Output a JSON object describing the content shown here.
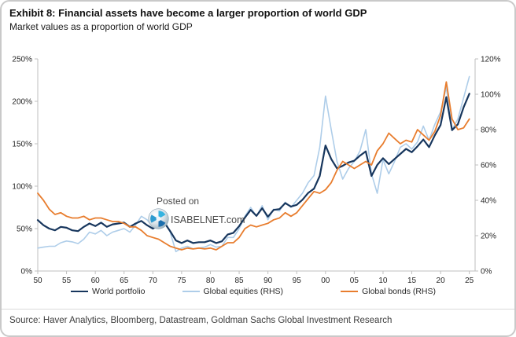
{
  "header": {
    "title": "Exhibit 8: Financial assets have become a larger proportion of world GDP",
    "subtitle": "Market values as a proportion of world GDP"
  },
  "watermark": {
    "line1": "Posted on",
    "line2": "ISABELNET.com"
  },
  "legend": [
    {
      "label": "World portfolio"
    },
    {
      "label": "Global equities (RHS)"
    },
    {
      "label": "Global bonds (RHS)"
    }
  ],
  "footer": {
    "source": "Source: Haver Analytics, Bloomberg, Datastream, Goldman Sachs Global Investment Research"
  },
  "colors": {
    "world_portfolio": "#17365d",
    "global_equities": "#aecde9",
    "global_bonds": "#e87d2e",
    "axis_line": "#bfbfbf",
    "tick_label": "#262626",
    "logo_blue": "#2e9bd0"
  },
  "chart_data": {
    "type": "line",
    "title": "Exhibit 8: Financial assets have become a larger proportion of world GDP",
    "subtitle": "Market values as a proportion of world GDP",
    "grid": false,
    "legend_position": "bottom",
    "x_domain": [
      1950,
      2026
    ],
    "x": [
      1950,
      1951,
      1952,
      1953,
      1954,
      1955,
      1956,
      1957,
      1958,
      1959,
      1960,
      1961,
      1962,
      1963,
      1964,
      1965,
      1966,
      1967,
      1968,
      1969,
      1970,
      1971,
      1972,
      1973,
      1974,
      1975,
      1976,
      1977,
      1978,
      1979,
      1980,
      1981,
      1982,
      1983,
      1984,
      1985,
      1986,
      1987,
      1988,
      1989,
      1990,
      1991,
      1992,
      1993,
      1994,
      1995,
      1996,
      1997,
      1998,
      1999,
      2000,
      2001,
      2002,
      2003,
      2004,
      2005,
      2006,
      2007,
      2008,
      2009,
      2010,
      2011,
      2012,
      2013,
      2014,
      2015,
      2016,
      2017,
      2018,
      2019,
      2020,
      2021,
      2022,
      2023,
      2024,
      2025
    ],
    "x_ticks": {
      "values": [
        1950,
        1955,
        1960,
        1965,
        1970,
        1975,
        1980,
        1985,
        1990,
        1995,
        2000,
        2005,
        2010,
        2015,
        2020,
        2025
      ],
      "labels": [
        "50",
        "55",
        "60",
        "65",
        "70",
        "75",
        "80",
        "85",
        "90",
        "95",
        "00",
        "05",
        "10",
        "15",
        "20",
        "25"
      ]
    },
    "left_axis": {
      "ylim": [
        0,
        250
      ],
      "tick_values": [
        0,
        50,
        100,
        150,
        200,
        250
      ],
      "tick_labels": [
        "0%",
        "50%",
        "100%",
        "150%",
        "200%",
        "250%"
      ]
    },
    "right_axis": {
      "ylim": [
        0,
        120
      ],
      "tick_values": [
        0,
        20,
        40,
        60,
        80,
        100,
        120
      ],
      "tick_labels": [
        "0%",
        "20%",
        "40%",
        "60%",
        "80%",
        "100%",
        "120%"
      ]
    },
    "draw_order": [
      1,
      0,
      2
    ],
    "series": [
      {
        "name": "World portfolio",
        "axis": "left",
        "color": "#17365d",
        "width": 2.2,
        "values": [
          60,
          54,
          50,
          48,
          52,
          51,
          48,
          47,
          52,
          56,
          53,
          57,
          52,
          55,
          56,
          57,
          52,
          56,
          59,
          54,
          50,
          54,
          57,
          47,
          36,
          33,
          36,
          33,
          34,
          34,
          36,
          33,
          35,
          43,
          45,
          53,
          63,
          72,
          65,
          74,
          64,
          72,
          73,
          80,
          76,
          78,
          84,
          92,
          97,
          112,
          148,
          132,
          121,
          124,
          128,
          130,
          136,
          141,
          112,
          125,
          133,
          126,
          132,
          138,
          144,
          140,
          147,
          155,
          146,
          160,
          172,
          205,
          166,
          173,
          193,
          209
        ]
      },
      {
        "name": "Global equities (RHS)",
        "axis": "right",
        "color": "#aecde9",
        "width": 1.6,
        "values": [
          13,
          13.5,
          14,
          14,
          16,
          17,
          16.5,
          15.5,
          18,
          22,
          21,
          23,
          20,
          22,
          23,
          24,
          22,
          26,
          31,
          29,
          25,
          27,
          29,
          22,
          11,
          13,
          14,
          12.5,
          13,
          13.5,
          15,
          13.5,
          14,
          19,
          19,
          24,
          31,
          36,
          31,
          37,
          29,
          35,
          34,
          39,
          36,
          40,
          44,
          50,
          54,
          70,
          99,
          80,
          62,
          52,
          58,
          62,
          68,
          80,
          55,
          44,
          63,
          55,
          62,
          70,
          72,
          69,
          73,
          82,
          74,
          83,
          90,
          104,
          80,
          86,
          98,
          110
        ]
      },
      {
        "name": "Global bonds (RHS)",
        "axis": "right",
        "color": "#e87d2e",
        "width": 1.8,
        "values": [
          44,
          40,
          35,
          32,
          33,
          31,
          30,
          30,
          31,
          29,
          30,
          30,
          29,
          28,
          28,
          27,
          25,
          25,
          23,
          20,
          19,
          18,
          16,
          14,
          13,
          12,
          13,
          12.5,
          13,
          12.5,
          13,
          12,
          14,
          16,
          16,
          19,
          24,
          26,
          25,
          26,
          27,
          29,
          30,
          33,
          31,
          33,
          37,
          41,
          45,
          44,
          46,
          50,
          57,
          62,
          60,
          58,
          60,
          62,
          60,
          68,
          72,
          78,
          75,
          72,
          74,
          73,
          80,
          77,
          74,
          79,
          88,
          107,
          86,
          80,
          81,
          86
        ]
      }
    ]
  }
}
